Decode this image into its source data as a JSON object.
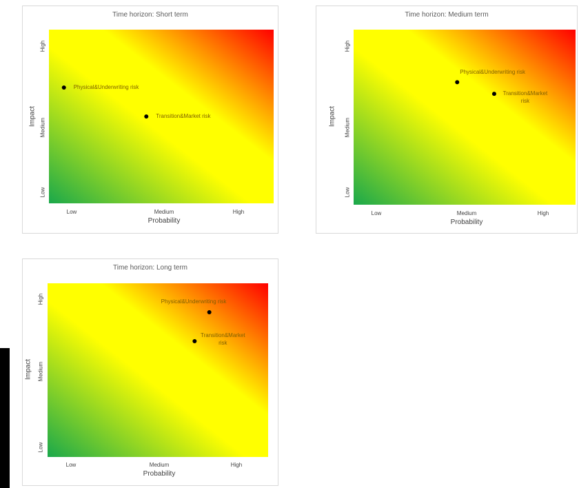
{
  "chart_data": [
    {
      "type": "scatter",
      "title": "Time horizon: Short term",
      "xlabel": "Probability",
      "ylabel": "Impact",
      "x_categories": [
        "Low",
        "Medium",
        "High"
      ],
      "y_categories": [
        "Low",
        "Medium",
        "High"
      ],
      "xlim": [
        0,
        3
      ],
      "ylim": [
        0,
        3
      ],
      "grid": false,
      "background": "risk heat gradient (green low-left, yellow middle, red high-right)",
      "points": [
        {
          "label": "Physical&Underwriting risk",
          "x": 0.2,
          "y": 2.0
        },
        {
          "label": "Transition&Market risk",
          "x": 1.3,
          "y": 1.5
        }
      ]
    },
    {
      "type": "scatter",
      "title": "Time horizon: Medium term",
      "xlabel": "Probability",
      "ylabel": "Impact",
      "x_categories": [
        "Low",
        "Medium",
        "High"
      ],
      "y_categories": [
        "Low",
        "Medium",
        "High"
      ],
      "xlim": [
        0,
        3
      ],
      "ylim": [
        0,
        3
      ],
      "grid": false,
      "background": "risk heat gradient (green low-left, yellow middle, red high-right)",
      "points": [
        {
          "label": "Physical&Underwriting risk",
          "x": 1.4,
          "y": 2.1
        },
        {
          "label": "Transition&Market risk",
          "x": 1.9,
          "y": 1.9
        }
      ]
    },
    {
      "type": "scatter",
      "title": "Time horizon: Long term",
      "xlabel": "Probability",
      "ylabel": "Impact",
      "x_categories": [
        "Low",
        "Medium",
        "High"
      ],
      "y_categories": [
        "Low",
        "Medium",
        "High"
      ],
      "xlim": [
        0,
        3
      ],
      "ylim": [
        0,
        3
      ],
      "grid": false,
      "background": "risk heat gradient (green low-left, yellow middle, red high-right)",
      "points": [
        {
          "label": "Physical&Underwriting risk",
          "x": 2.2,
          "y": 2.5
        },
        {
          "label": "Transition&Market risk",
          "x": 2.0,
          "y": 2.0
        }
      ]
    }
  ],
  "colors": {
    "gradient_low": "#1aa84b",
    "gradient_mid": "#ffff00",
    "gradient_high": "#ff0000",
    "marker": "#000000",
    "point_label": "#7f6000",
    "text": "#404040"
  }
}
